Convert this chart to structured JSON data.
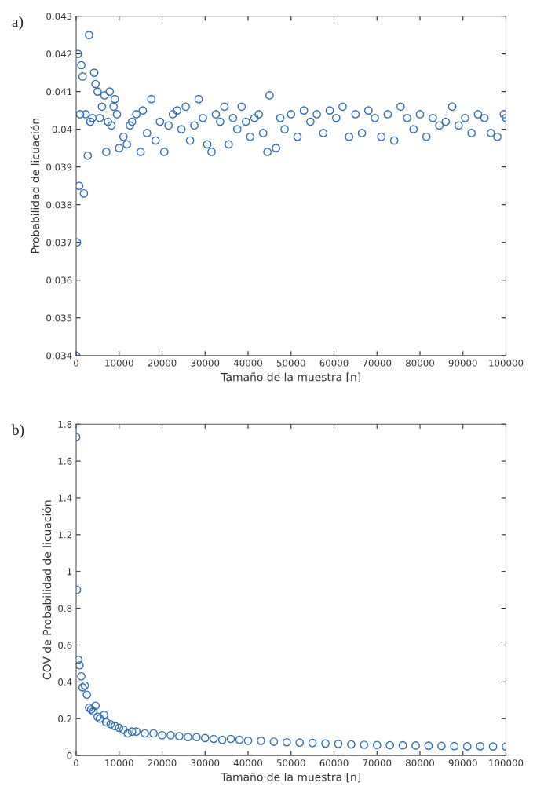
{
  "chart_data": [
    {
      "type": "scatter",
      "xlabel": "Tamaño de la muestra [n]",
      "ylabel": "Probabilidad de licuación",
      "annotations": [
        "a)"
      ],
      "marker": "circle",
      "grid": false,
      "xlim": [
        0,
        100000
      ],
      "xticks": [
        0,
        10000,
        20000,
        30000,
        40000,
        50000,
        60000,
        70000,
        80000,
        90000,
        100000
      ],
      "ylim": [
        0.034,
        0.043
      ],
      "yticks": [
        0.034,
        0.035,
        0.036,
        0.037,
        0.038,
        0.039,
        0.04,
        0.041,
        0.042,
        0.043
      ],
      "series": [
        {
          "color": "#2f6fbf",
          "x": [
            0,
            200,
            400,
            700,
            900,
            1200,
            1500,
            1800,
            2200,
            2700,
            3000,
            3300,
            3800,
            4200,
            4500,
            5000,
            5500,
            6000,
            6600,
            7000,
            7400,
            7800,
            8200,
            8700,
            9000,
            9500,
            10000,
            11000,
            11800,
            12500,
            13000,
            14000,
            15000,
            15500,
            16500,
            17500,
            18500,
            19500,
            20500,
            21500,
            22500,
            23500,
            24500,
            25500,
            26500,
            27500,
            28500,
            29500,
            30500,
            31500,
            32500,
            33500,
            34500,
            35500,
            36500,
            37500,
            38500,
            39500,
            40500,
            41500,
            42500,
            43500,
            44500,
            45000,
            46500,
            47500,
            48500,
            50000,
            51500,
            53000,
            54500,
            56000,
            57500,
            59000,
            60500,
            62000,
            63500,
            65000,
            66500,
            68000,
            69500,
            71000,
            72500,
            74000,
            75500,
            77000,
            78500,
            80000,
            81500,
            83000,
            84500,
            86000,
            87500,
            89000,
            90500,
            92000,
            93500,
            95000,
            96500,
            98000,
            99500,
            100000
          ],
          "values": [
            0.034,
            0.037,
            0.042,
            0.0385,
            0.0404,
            0.0417,
            0.0414,
            0.0383,
            0.0404,
            0.0393,
            0.0425,
            0.0402,
            0.0403,
            0.0415,
            0.0412,
            0.041,
            0.0403,
            0.0406,
            0.0409,
            0.0394,
            0.0402,
            0.041,
            0.0401,
            0.0406,
            0.0408,
            0.0404,
            0.0395,
            0.0398,
            0.0396,
            0.0401,
            0.0402,
            0.0404,
            0.0394,
            0.0405,
            0.0399,
            0.0408,
            0.0397,
            0.0402,
            0.0394,
            0.0401,
            0.0404,
            0.0405,
            0.04,
            0.0406,
            0.0397,
            0.0401,
            0.0408,
            0.0403,
            0.0396,
            0.0394,
            0.0404,
            0.0402,
            0.0406,
            0.0396,
            0.0403,
            0.04,
            0.0406,
            0.0402,
            0.0398,
            0.0403,
            0.0404,
            0.0399,
            0.0394,
            0.0409,
            0.0395,
            0.0403,
            0.04,
            0.0404,
            0.0398,
            0.0405,
            0.0402,
            0.0404,
            0.0399,
            0.0405,
            0.0403,
            0.0406,
            0.0398,
            0.0404,
            0.0399,
            0.0405,
            0.0403,
            0.0398,
            0.0404,
            0.0397,
            0.0406,
            0.0403,
            0.04,
            0.0404,
            0.0398,
            0.0403,
            0.0401,
            0.0402,
            0.0406,
            0.0401,
            0.0403,
            0.0399,
            0.0404,
            0.0403,
            0.0399,
            0.0398,
            0.0404,
            0.0403
          ]
        }
      ]
    },
    {
      "type": "scatter",
      "xlabel": "Tamaño de la muestra [n]",
      "ylabel": "COV de Probabilidad de licuación",
      "annotations": [
        "b)"
      ],
      "marker": "circle",
      "grid": false,
      "xlim": [
        0,
        100000
      ],
      "xticks": [
        0,
        10000,
        20000,
        30000,
        40000,
        50000,
        60000,
        70000,
        80000,
        90000,
        100000
      ],
      "ylim": [
        0,
        1.8
      ],
      "yticks": [
        0,
        0.2,
        0.4,
        0.6,
        0.8,
        1,
        1.2,
        1.4,
        1.6,
        1.8
      ],
      "series": [
        {
          "color": "#2f6fbf",
          "x": [
            0,
            200,
            500,
            800,
            1200,
            1500,
            2000,
            2500,
            3000,
            3500,
            4000,
            4500,
            5000,
            5500,
            6500,
            7000,
            8000,
            9000,
            10000,
            11000,
            12000,
            13000,
            14000,
            16000,
            18000,
            20000,
            22000,
            24000,
            26000,
            28000,
            30000,
            32000,
            34000,
            36000,
            38000,
            40000,
            43000,
            46000,
            49000,
            52000,
            55000,
            58000,
            61000,
            64000,
            67000,
            70000,
            73000,
            76000,
            79000,
            82000,
            85000,
            88000,
            91000,
            94000,
            97000,
            100000
          ],
          "values": [
            1.73,
            0.9,
            0.52,
            0.49,
            0.43,
            0.37,
            0.38,
            0.33,
            0.26,
            0.25,
            0.24,
            0.27,
            0.21,
            0.2,
            0.22,
            0.18,
            0.17,
            0.16,
            0.15,
            0.14,
            0.12,
            0.13,
            0.13,
            0.12,
            0.12,
            0.11,
            0.11,
            0.105,
            0.1,
            0.1,
            0.095,
            0.09,
            0.085,
            0.09,
            0.085,
            0.08,
            0.08,
            0.075,
            0.072,
            0.07,
            0.068,
            0.065,
            0.063,
            0.06,
            0.058,
            0.057,
            0.056,
            0.055,
            0.054,
            0.053,
            0.052,
            0.051,
            0.05,
            0.05,
            0.049,
            0.048
          ]
        }
      ]
    }
  ]
}
